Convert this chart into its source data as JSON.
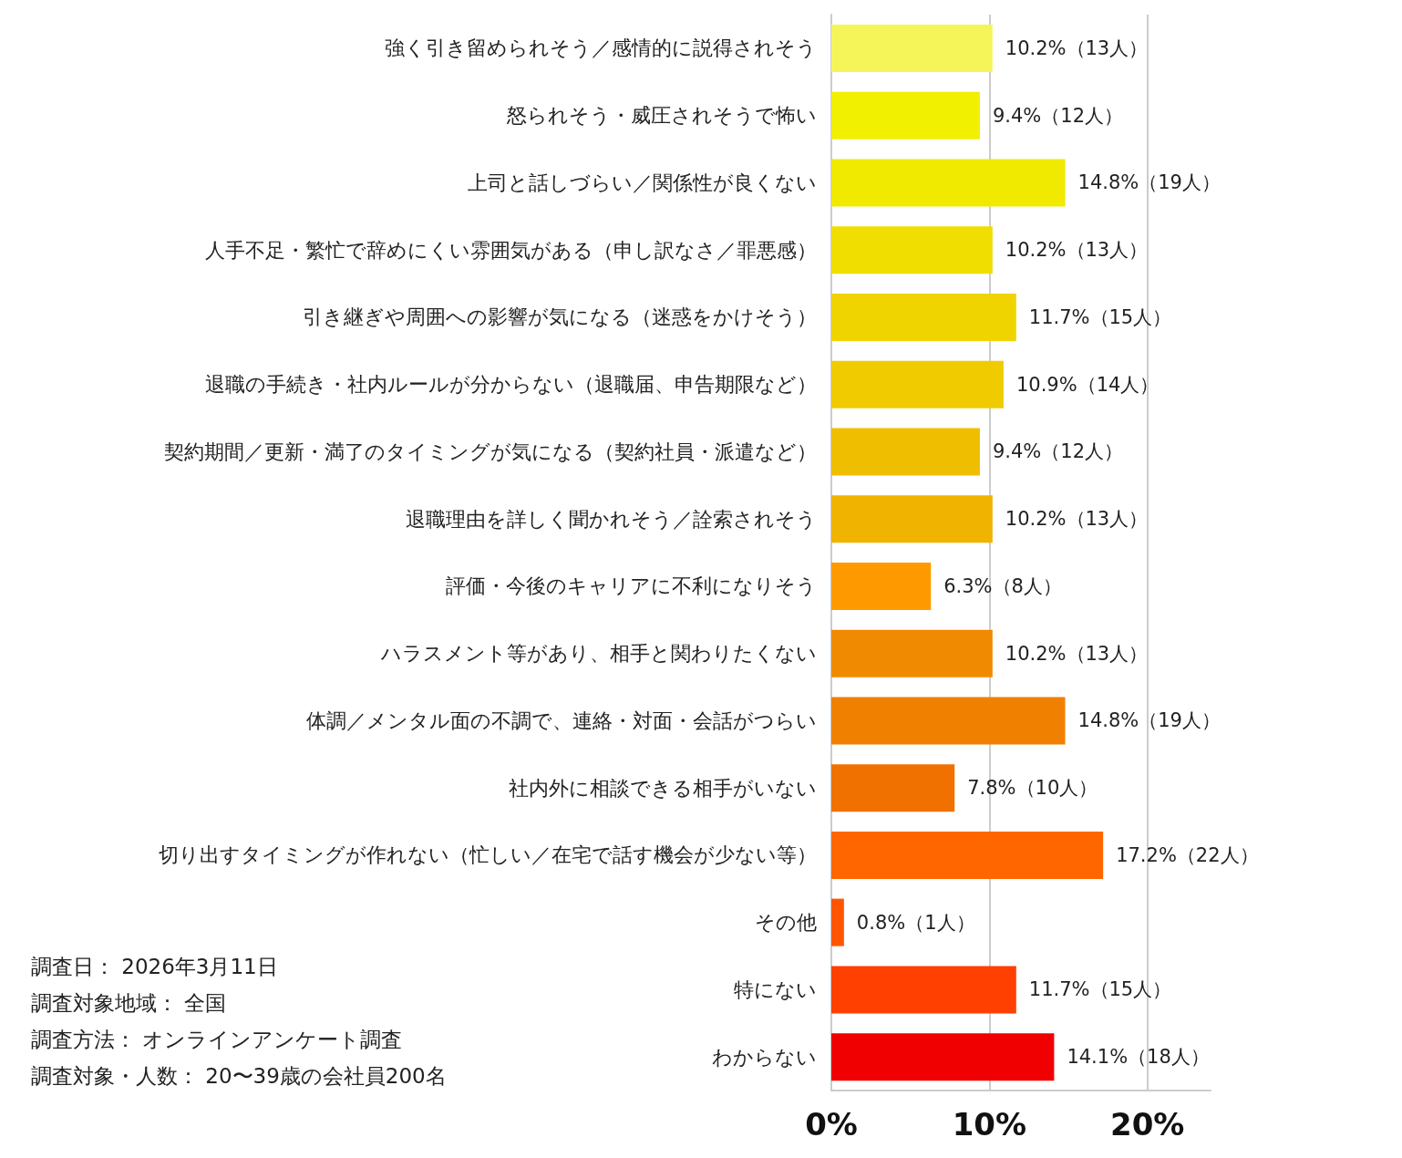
{
  "chart_data": {
    "type": "bar",
    "orientation": "horizontal",
    "categories": [
      "強く引き留められそう／感情的に説得されそう",
      "怒られそう・威圧されそうで怖い",
      "上司と話しづらい／関係性が良くない",
      "人手不足・繁忙で辞めにくい雰囲気がある（申し訳なさ／罪悪感）",
      "引き継ぎや周囲への影響が気になる（迷惑をかけそう）",
      "退職の手続き・社内ルールが分からない（退職届、申告期限など）",
      "契約期間／更新・満了のタイミングが気になる（契約社員・派遣など）",
      "退職理由を詳しく聞かれそう／詮索されそう",
      "評価・今後のキャリアに不利になりそう",
      "ハラスメント等があり、相手と関わりたくない",
      "体調／メンタル面の不調で、連絡・対面・会話がつらい",
      "社内外に相談できる相手がいない",
      "切り出すタイミングが作れない（忙しい／在宅で話す機会が少ない等）",
      "その他",
      "特にない",
      "わからない"
    ],
    "values": [
      10.2,
      9.4,
      14.8,
      10.2,
      11.7,
      10.9,
      9.4,
      10.2,
      6.3,
      10.2,
      14.8,
      7.8,
      17.2,
      0.8,
      11.7,
      14.1
    ],
    "value_labels": [
      "10.2%（13人）",
      "9.4%（12人）",
      "14.8%（19人）",
      "10.2%（13人）",
      "11.7%（15人）",
      "10.9%（14人）",
      "9.4%（12人）",
      "10.2%（13人）",
      "6.3%（8人）",
      "10.2%（13人）",
      "14.8%（19人）",
      "7.8%（10人）",
      "17.2%（22人）",
      "0.8%（1人）",
      "11.7%（15人）",
      "14.1%（18人）"
    ],
    "colors": [
      "#f5f55a",
      "#f0f000",
      "#f0ea00",
      "#f0de00",
      "#f0d400",
      "#f0cb00",
      "#f0be00",
      "#f0b400",
      "#ff9900",
      "#f08a00",
      "#f08000",
      "#f07000",
      "#ff6600",
      "#ff5500",
      "#ff4000",
      "#f00000"
    ],
    "xlim": [
      0,
      24
    ],
    "xticks": [
      {
        "value": 0,
        "label": "0%"
      },
      {
        "value": 10,
        "label": "10%"
      },
      {
        "value": 20,
        "label": "20%"
      }
    ],
    "grid": "x",
    "annotations": [
      "調査日： 2026年3月11日",
      "調査対象地域： 全国",
      "調査方法： オンラインアンケート調査",
      "調査対象・人数： 20〜39歳の会社員200名"
    ]
  }
}
